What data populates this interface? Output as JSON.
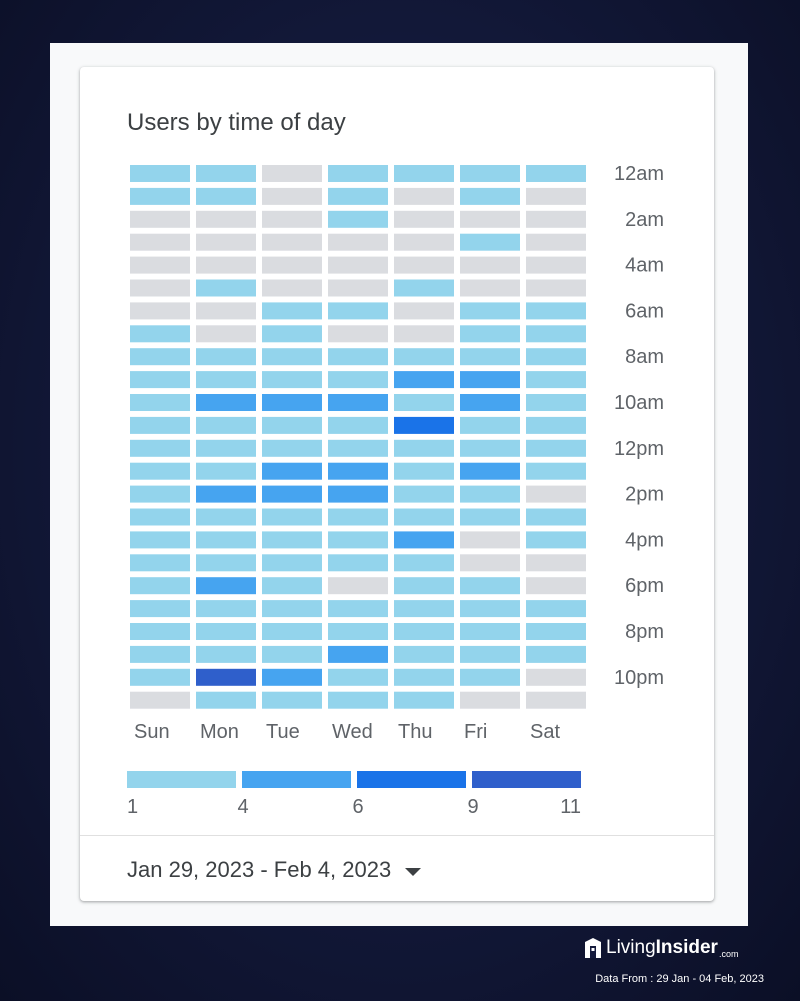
{
  "page": {
    "background": "#141a3c"
  },
  "card": {
    "title": "Users by time of day",
    "date_range": "Jan 29, 2023 - Feb 4, 2023"
  },
  "chart_data": {
    "type": "heatmap",
    "title": "Users by time of day",
    "x_categories": [
      "Sun",
      "Mon",
      "Tue",
      "Wed",
      "Thu",
      "Fri",
      "Sat"
    ],
    "y_categories": [
      "12am",
      "1am",
      "2am",
      "3am",
      "4am",
      "5am",
      "6am",
      "7am",
      "8am",
      "9am",
      "10am",
      "11am",
      "12pm",
      "1pm",
      "2pm",
      "3pm",
      "4pm",
      "5pm",
      "6pm",
      "7pm",
      "8pm",
      "9pm",
      "10pm",
      "11pm"
    ],
    "y_tick_labels": [
      "12am",
      "2am",
      "4am",
      "6am",
      "8am",
      "10am",
      "12pm",
      "2pm",
      "4pm",
      "6pm",
      "8pm",
      "10pm"
    ],
    "value_note": "levels: 0 = no users, 1 = 1-3, 2 = 4-5, 3 = 6-8, 4 = 9-11",
    "levels": [
      [
        1,
        1,
        0,
        1,
        1,
        1,
        1
      ],
      [
        1,
        1,
        0,
        1,
        0,
        1,
        0
      ],
      [
        0,
        0,
        0,
        1,
        0,
        0,
        0
      ],
      [
        0,
        0,
        0,
        0,
        0,
        1,
        0
      ],
      [
        0,
        0,
        0,
        0,
        0,
        0,
        0
      ],
      [
        0,
        1,
        0,
        0,
        1,
        0,
        0
      ],
      [
        0,
        0,
        1,
        1,
        0,
        1,
        1
      ],
      [
        1,
        0,
        1,
        0,
        0,
        1,
        1
      ],
      [
        1,
        1,
        1,
        1,
        1,
        1,
        1
      ],
      [
        1,
        1,
        1,
        1,
        2,
        2,
        1
      ],
      [
        1,
        2,
        2,
        2,
        1,
        2,
        1
      ],
      [
        1,
        1,
        1,
        1,
        3,
        1,
        1
      ],
      [
        1,
        1,
        1,
        1,
        1,
        1,
        1
      ],
      [
        1,
        1,
        2,
        2,
        1,
        2,
        1
      ],
      [
        1,
        2,
        2,
        2,
        1,
        1,
        0
      ],
      [
        1,
        1,
        1,
        1,
        1,
        1,
        1
      ],
      [
        1,
        1,
        1,
        1,
        2,
        0,
        1
      ],
      [
        1,
        1,
        1,
        1,
        1,
        0,
        0
      ],
      [
        1,
        2,
        1,
        0,
        1,
        1,
        0
      ],
      [
        1,
        1,
        1,
        1,
        1,
        1,
        1
      ],
      [
        1,
        1,
        1,
        1,
        1,
        1,
        1
      ],
      [
        1,
        1,
        1,
        2,
        1,
        1,
        1
      ],
      [
        1,
        4,
        2,
        1,
        1,
        1,
        0
      ],
      [
        0,
        1,
        1,
        1,
        1,
        0,
        0
      ]
    ],
    "legend": {
      "labels": [
        "1",
        "4",
        "6",
        "9",
        "11"
      ]
    },
    "colors": [
      "#dadce0",
      "#93d4ec",
      "#46a4f0",
      "#1a73e8",
      "#2f5fcb"
    ],
    "label_color": "#5f6368"
  },
  "watermark": {
    "brand_light": "Living",
    "brand_bold": "Insider",
    "brand_suffix": ".com",
    "data_from": "Data From : 29 Jan - 04 Feb, 2023"
  }
}
